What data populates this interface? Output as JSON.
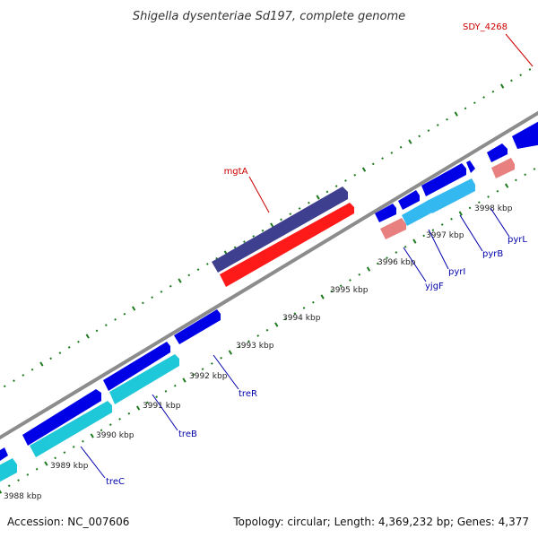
{
  "title": "Shigella dysenteriae Sd197, complete genome",
  "footer": {
    "accession": "Accession: NC_007606",
    "summary": "Topology: circular; Length: 4,369,232 bp; Genes: 4,377"
  },
  "colors": {
    "backbone": "#8c8c8c",
    "tick_green": "#1f7a1f",
    "forward_gene": "#0000e6",
    "reverse_gene": "#0000e6",
    "cds_cyan": "#1fc8d8",
    "cds_light_blue": "#33b8f0",
    "rna_dark": "#3f3f8f",
    "rna_red": "#ff1a1a",
    "pink": "#e88080",
    "label_red": "#cc0000",
    "label_blue": "#0000aa"
  },
  "tick_labels": [
    "3988 kbp",
    "3989 kbp",
    "3990 kbp",
    "3991 kbp",
    "3992 kbp",
    "3993 kbp",
    "3994 kbp",
    "3995 kbp",
    "3996 kbp",
    "3997 kbp",
    "3998 kbp"
  ],
  "gene_labels_red": [
    "SDY_4268",
    "mgtA"
  ],
  "gene_labels_blue": [
    "treC",
    "treB",
    "treR",
    "yjgF",
    "pyrI",
    "pyrB",
    "pyrL"
  ]
}
